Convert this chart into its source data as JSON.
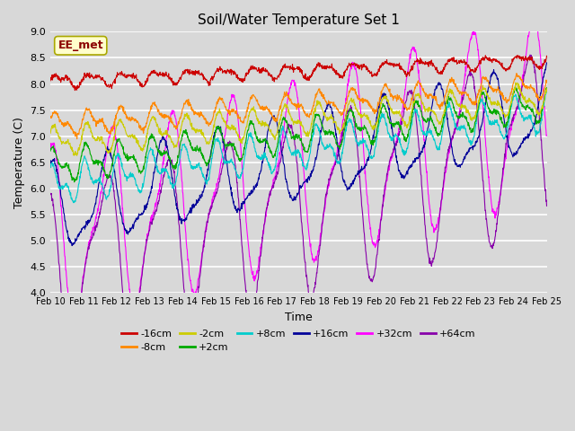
{
  "title": "Soil/Water Temperature Set 1",
  "xlabel": "Time",
  "ylabel": "Temperature (C)",
  "ylim": [
    4.0,
    9.0
  ],
  "yticks": [
    4.0,
    4.5,
    5.0,
    5.5,
    6.0,
    6.5,
    7.0,
    7.5,
    8.0,
    8.5,
    9.0
  ],
  "xtick_labels": [
    "Feb 10",
    "Feb 11",
    "Feb 12",
    "Feb 13",
    "Feb 14",
    "Feb 15",
    "Feb 16",
    "Feb 17",
    "Feb 18",
    "Feb 19",
    "Feb 20",
    "Feb 21",
    "Feb 22",
    "Feb 23",
    "Feb 24",
    "Feb 25"
  ],
  "n_points": 1500,
  "series": {
    "-16cm": {
      "color": "#cc0000",
      "base": 8.05,
      "amp1": 0.1,
      "amp2": 0.05,
      "trend": 0.4,
      "freq1": 1.0,
      "freq2": 2.0,
      "phase1": 0.0,
      "phase2": 1.0
    },
    "-8cm": {
      "color": "#ff8800",
      "base": 7.22,
      "amp1": 0.18,
      "amp2": 0.1,
      "trend": 0.75,
      "freq1": 1.0,
      "freq2": 2.0,
      "phase1": 0.3,
      "phase2": 0.5
    },
    "-2cm": {
      "color": "#cccc00",
      "base": 6.88,
      "amp1": 0.22,
      "amp2": 0.12,
      "trend": 0.85,
      "freq1": 1.0,
      "freq2": 2.0,
      "phase1": 0.5,
      "phase2": 0.8
    },
    "+2cm": {
      "color": "#00aa00",
      "base": 6.42,
      "amp1": 0.25,
      "amp2": 0.15,
      "trend": 1.2,
      "freq1": 1.0,
      "freq2": 2.0,
      "phase1": 0.7,
      "phase2": 1.2
    },
    "+8cm": {
      "color": "#00cccc",
      "base": 6.05,
      "amp1": 0.28,
      "amp2": 0.18,
      "trend": 1.4,
      "freq1": 1.0,
      "freq2": 2.0,
      "phase1": 0.9,
      "phase2": 1.5
    },
    "+16cm": {
      "color": "#000099",
      "base": 5.55,
      "amp1": 0.55,
      "amp2": 0.3,
      "trend": 1.9,
      "freq1": 1.0,
      "freq2": 1.0,
      "phase1": 1.2,
      "phase2": 1.8
    },
    "+32cm": {
      "color": "#ff00ff",
      "base": 5.05,
      "amp1": 0.8,
      "amp2": 0.5,
      "trend": 2.5,
      "freq1": 0.7,
      "freq2": 1.5,
      "phase1": 1.5,
      "phase2": 2.1
    },
    "+64cm": {
      "color": "#8800aa",
      "base": 4.38,
      "amp1": 0.85,
      "amp2": 0.55,
      "trend": 2.7,
      "freq1": 0.7,
      "freq2": 1.5,
      "phase1": 1.8,
      "phase2": 2.4
    }
  },
  "legend_order_row1": [
    "-16cm",
    "-8cm",
    "-2cm",
    "+2cm",
    "+8cm",
    "+16cm"
  ],
  "legend_order_row2": [
    "+32cm",
    "+64cm"
  ],
  "legend_label": "EE_met",
  "background_color": "#d8d8d8",
  "plot_background": "#d8d8d8",
  "grid_color": "white"
}
